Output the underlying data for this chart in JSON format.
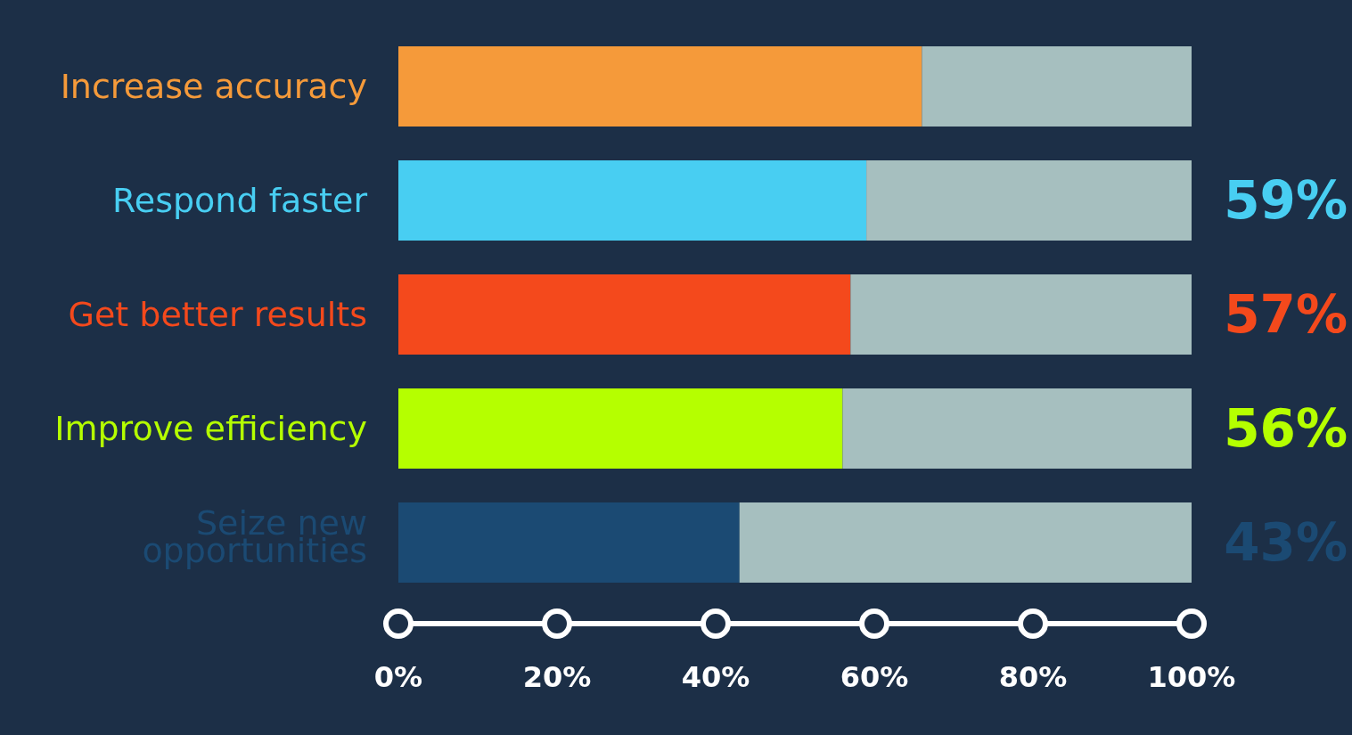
{
  "chart_data": {
    "type": "bar",
    "orientation": "horizontal",
    "stacked": true,
    "categories": [
      "Increase accuracy",
      "Respond faster",
      "Get better results",
      "Improve efficiency",
      "Seize new opportunities"
    ],
    "series": [
      {
        "colors": [
          "#f59a3a",
          "#48cef2",
          "#f4491c",
          "#b5ff00",
          "#1b4a73"
        ],
        "values": [
          66,
          59,
          57,
          56,
          43
        ],
        "value_labels": [
          null,
          "59%",
          "57%",
          "56%",
          "43%"
        ]
      },
      {
        "color": "#a6bfbf",
        "values": [
          34,
          41,
          43,
          44,
          57
        ]
      }
    ],
    "xlim": [
      0,
      100
    ],
    "xticks": [
      {
        "value": 0,
        "label": "0%"
      },
      {
        "value": 20,
        "label": "20%"
      },
      {
        "value": 40,
        "label": "40%"
      },
      {
        "value": 60,
        "label": "60%"
      },
      {
        "value": 80,
        "label": "80%"
      },
      {
        "value": 100,
        "label": "100%"
      }
    ]
  }
}
